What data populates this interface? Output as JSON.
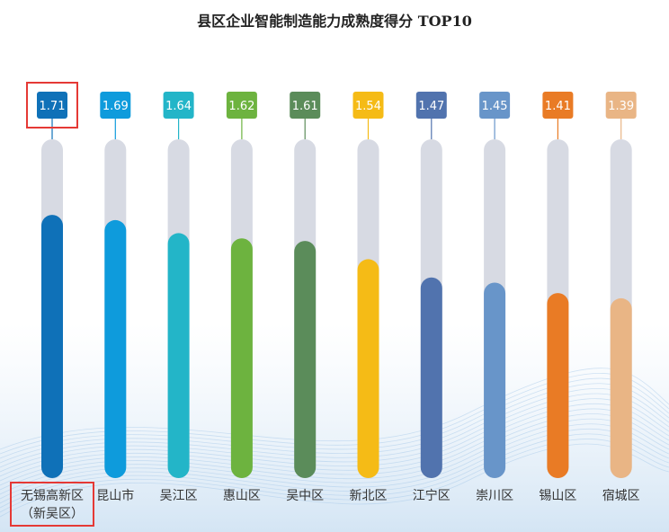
{
  "title": "县区企业智能制造能力成熟度得分 TOP10",
  "chart_data": {
    "type": "bar",
    "title": "县区企业智能制造能力成熟度得分 TOP10",
    "categories": [
      "无锡高新区",
      "昆山市",
      "吴江区",
      "惠山区",
      "吴中区",
      "新北区",
      "江宁区",
      "崇川区",
      "锡山区",
      "宿城区"
    ],
    "category_sublabels": [
      "（新吴区）",
      "",
      "",
      "",
      "",
      "",
      "",
      "",
      "",
      ""
    ],
    "values": [
      1.71,
      1.69,
      1.64,
      1.62,
      1.61,
      1.54,
      1.47,
      1.45,
      1.41,
      1.39
    ],
    "value_labels": [
      "1.71",
      "1.69",
      "1.64",
      "1.62",
      "1.61",
      "1.54",
      "1.47",
      "1.45",
      "1.41",
      "1.39"
    ],
    "colors": [
      "#0f71b8",
      "#0e9bdc",
      "#23b5c8",
      "#6db33f",
      "#5b8c5a",
      "#f5bb16",
      "#5173ae",
      "#6895c9",
      "#e97b25",
      "#e9b585"
    ],
    "track_color": "#d7dae3",
    "ylim": [
      0,
      2
    ],
    "highlight_index": 0,
    "highlight_color": "#e53935",
    "xlabel": "",
    "ylabel": "",
    "grid": false,
    "legend": "none"
  }
}
